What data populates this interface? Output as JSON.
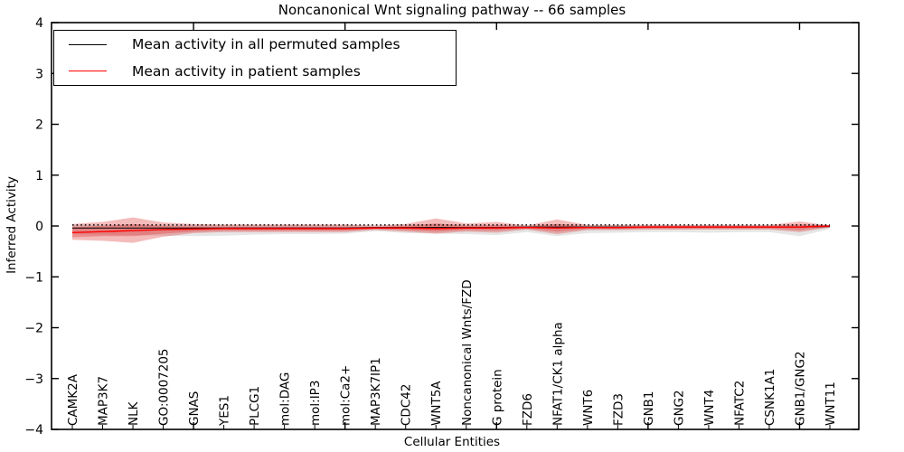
{
  "title": "Noncanonical Wnt signaling pathway -- 66 samples",
  "legend": {
    "items": [
      {
        "label": "Mean activity in all permuted samples",
        "color": "#000000"
      },
      {
        "label": "Mean activity in patient samples",
        "color": "#ff0000"
      }
    ]
  },
  "axes": {
    "ylabel": "Inferred Activity",
    "xlabel": "Cellular Entities"
  },
  "chart_data": {
    "type": "line",
    "title": "Noncanonical Wnt signaling pathway -- 66 samples",
    "xlabel": "Cellular Entities",
    "ylabel": "Inferred Activity",
    "ylim": [
      -4,
      4
    ],
    "yticks": [
      4,
      3,
      2,
      1,
      0,
      -1,
      -2,
      -3,
      -4
    ],
    "x_major_tick_indices": [
      4,
      9,
      14,
      19,
      24
    ],
    "grid": false,
    "legend_position": "upper left",
    "categories": [
      "CAMK2A",
      "MAP3K7",
      "NLK",
      "GO:0007205",
      "GNAS",
      "YES1",
      "PLCG1",
      "mol:DAG",
      "mol:IP3",
      "mol:Ca2+",
      "MAP3K7IP1",
      "CDC42",
      "WNT5A",
      "Noncanonical Wnts/FZD",
      "G protein",
      "FZD6",
      "NFAT1/CK1 alpha",
      "WNT6",
      "FZD3",
      "GNB1",
      "GNG2",
      "WNT4",
      "NFATC2",
      "CSNK1A1",
      "GNB1/GNG2",
      "WNT11"
    ],
    "series": [
      {
        "name": "Mean activity in all permuted samples",
        "color": "#000000",
        "style": "solid",
        "width": 1.1,
        "values": [
          -0.04,
          -0.04,
          -0.04,
          -0.04,
          -0.04,
          -0.04,
          -0.04,
          -0.04,
          -0.04,
          -0.04,
          -0.03,
          -0.03,
          -0.03,
          -0.03,
          -0.03,
          -0.02,
          -0.02,
          -0.02,
          -0.02,
          -0.02,
          -0.02,
          -0.02,
          -0.02,
          -0.02,
          -0.02,
          -0.01
        ]
      },
      {
        "name": "Mean activity in patient samples",
        "color": "#ff0000",
        "style": "solid",
        "width": 1.5,
        "values": [
          -0.13,
          -0.11,
          -0.09,
          -0.07,
          -0.06,
          -0.05,
          -0.05,
          -0.05,
          -0.05,
          -0.05,
          -0.04,
          -0.04,
          -0.05,
          -0.04,
          -0.04,
          -0.03,
          -0.04,
          -0.03,
          -0.03,
          -0.02,
          -0.02,
          -0.02,
          -0.02,
          -0.02,
          -0.02,
          0.0
        ]
      },
      {
        "name": "permuted reference (dotted)",
        "color": "#000000",
        "style": "dotted",
        "width": 1.4,
        "values": [
          0.02,
          0.02,
          0.02,
          0.02,
          0.02,
          0.02,
          0.02,
          0.02,
          0.02,
          0.02,
          0.02,
          0.02,
          0.02,
          0.02,
          0.02,
          0.02,
          0.02,
          0.02,
          0.02,
          0.02,
          0.02,
          0.02,
          0.02,
          0.02,
          0.02,
          0.02
        ]
      }
    ],
    "bands": [
      {
        "name": "permuted-samples-range",
        "color": "rgba(128,128,128,0.20)",
        "hi": [
          0.02,
          0.02,
          0.02,
          0.02,
          0.02,
          0.02,
          0.02,
          0.02,
          0.02,
          0.02,
          0.01,
          0.02,
          0.05,
          0.02,
          0.02,
          0.01,
          0.04,
          0.02,
          0.02,
          0.02,
          0.02,
          0.02,
          0.02,
          0.02,
          0.03,
          0.01
        ],
        "lo": [
          -0.16,
          -0.17,
          -0.18,
          -0.19,
          -0.2,
          -0.19,
          -0.17,
          -0.16,
          -0.16,
          -0.15,
          -0.1,
          -0.14,
          -0.15,
          -0.16,
          -0.18,
          -0.12,
          -0.2,
          -0.14,
          -0.13,
          -0.12,
          -0.12,
          -0.13,
          -0.12,
          -0.12,
          -0.2,
          -0.06
        ]
      },
      {
        "name": "patient-samples-outer",
        "color": "rgba(221,45,45,0.32)",
        "hi": [
          0.04,
          0.08,
          0.17,
          0.07,
          0.04,
          0.03,
          0.03,
          0.03,
          0.03,
          0.03,
          0.01,
          0.04,
          0.15,
          0.05,
          0.08,
          0.01,
          0.13,
          0.02,
          0.02,
          0.02,
          0.02,
          0.02,
          0.02,
          0.02,
          0.09,
          0.01
        ],
        "lo": [
          -0.27,
          -0.29,
          -0.33,
          -0.21,
          -0.14,
          -0.12,
          -0.12,
          -0.12,
          -0.12,
          -0.12,
          -0.08,
          -0.11,
          -0.15,
          -0.11,
          -0.13,
          -0.07,
          -0.16,
          -0.08,
          -0.08,
          -0.07,
          -0.07,
          -0.07,
          -0.07,
          -0.07,
          -0.12,
          -0.03
        ],
        "legend": false
      },
      {
        "name": "patient-samples-inner",
        "color": "rgba(221,45,45,0.32)",
        "hi": [
          -0.02,
          0.0,
          0.04,
          0.0,
          -0.01,
          -0.01,
          -0.01,
          -0.01,
          -0.01,
          -0.01,
          -0.02,
          0.0,
          0.05,
          0.0,
          0.02,
          -0.01,
          0.04,
          -0.01,
          -0.01,
          0.0,
          0.0,
          0.0,
          0.0,
          0.0,
          0.03,
          0.01
        ],
        "lo": [
          -0.22,
          -0.2,
          -0.2,
          -0.15,
          -0.11,
          -0.09,
          -0.09,
          -0.09,
          -0.09,
          -0.09,
          -0.06,
          -0.08,
          -0.11,
          -0.08,
          -0.09,
          -0.05,
          -0.11,
          -0.06,
          -0.06,
          -0.05,
          -0.05,
          -0.05,
          -0.05,
          -0.05,
          -0.08,
          -0.02
        ]
      }
    ]
  }
}
